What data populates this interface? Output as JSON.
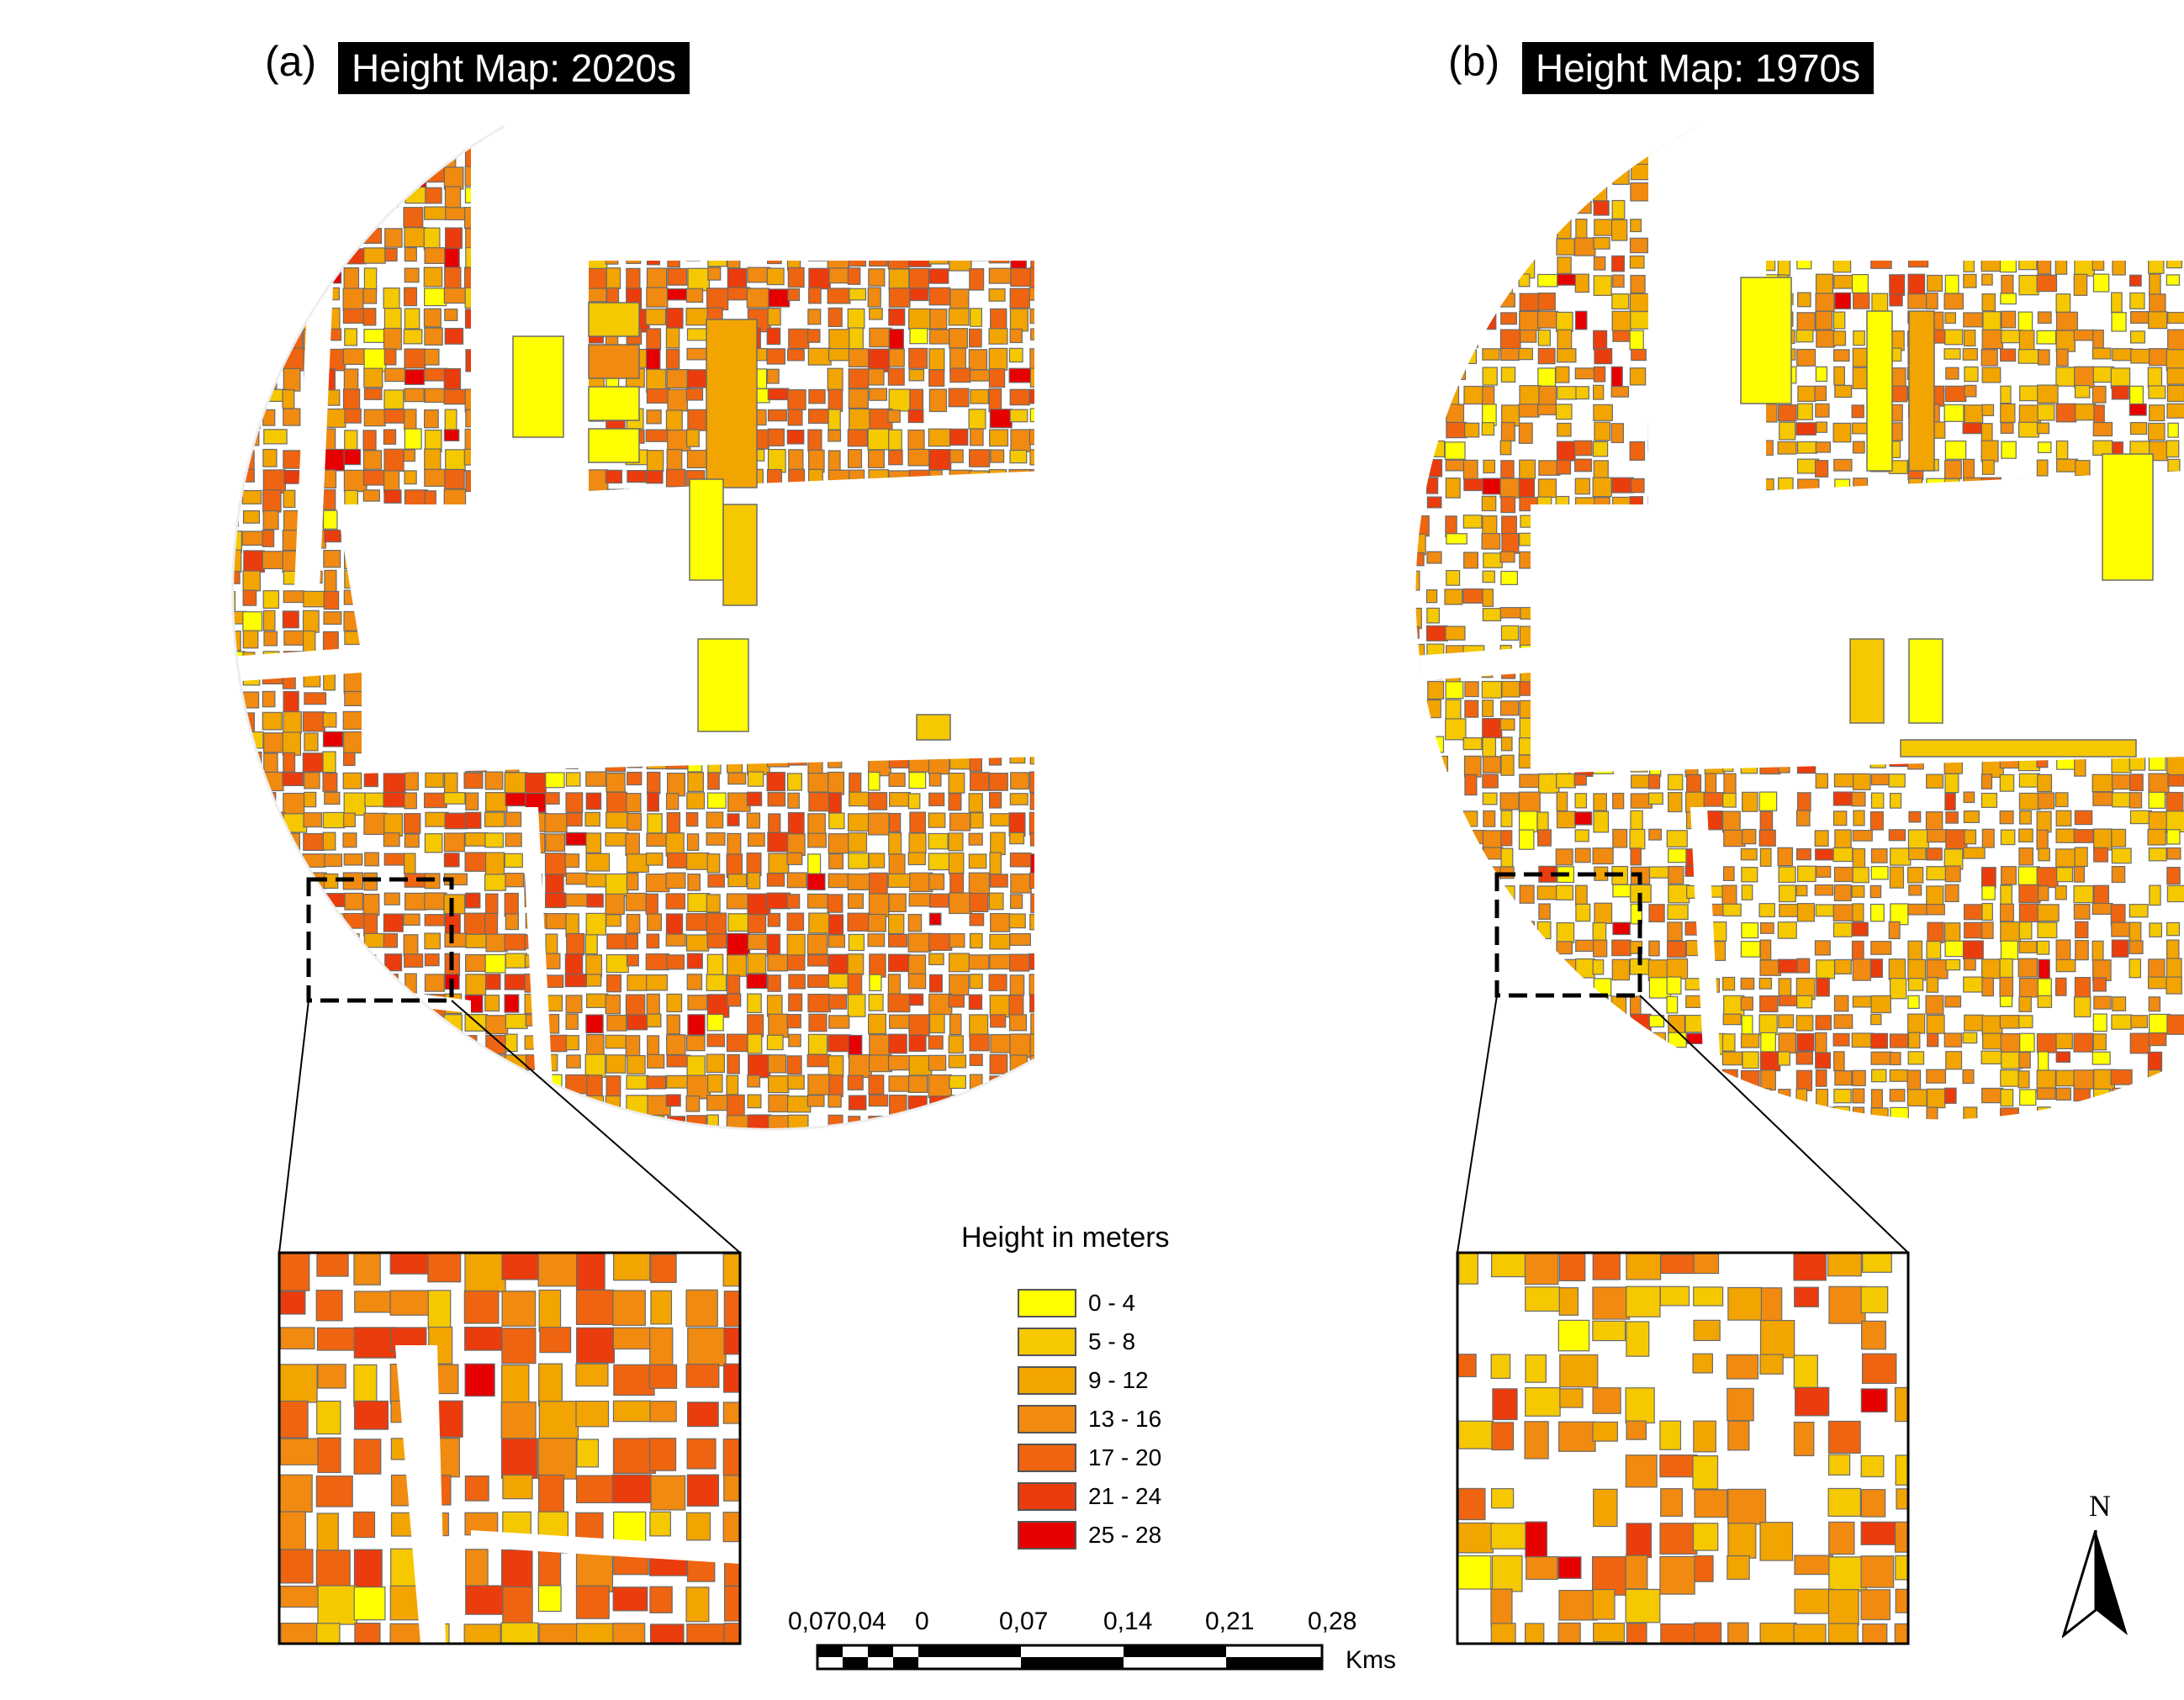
{
  "panels": [
    {
      "letter": "(a)",
      "title": "Height Map: 2020s"
    },
    {
      "letter": "(b)",
      "title": "Height Map: 1970s"
    }
  ],
  "legend": {
    "title": "Height in meters",
    "classes": [
      {
        "label": "0 - 4",
        "color": "#ffff00"
      },
      {
        "label": "5 - 8",
        "color": "#f5c800"
      },
      {
        "label": "9 - 12",
        "color": "#f2a400"
      },
      {
        "label": "13 - 16",
        "color": "#f08a10"
      },
      {
        "label": "17 - 20",
        "color": "#ee6410"
      },
      {
        "label": "21 - 24",
        "color": "#ea3c0c"
      },
      {
        "label": "25 - 28",
        "color": "#e60000"
      }
    ]
  },
  "scale_bar": {
    "labels": [
      "0,070,04",
      "0",
      "0,07",
      "0,14",
      "0,21",
      "0,28"
    ],
    "unit": "Kms"
  },
  "north_arrow": {
    "label": "N"
  },
  "colors": {
    "road": "#ffffff",
    "outline": "#6b6b6b",
    "zoom_box": "#000000"
  }
}
